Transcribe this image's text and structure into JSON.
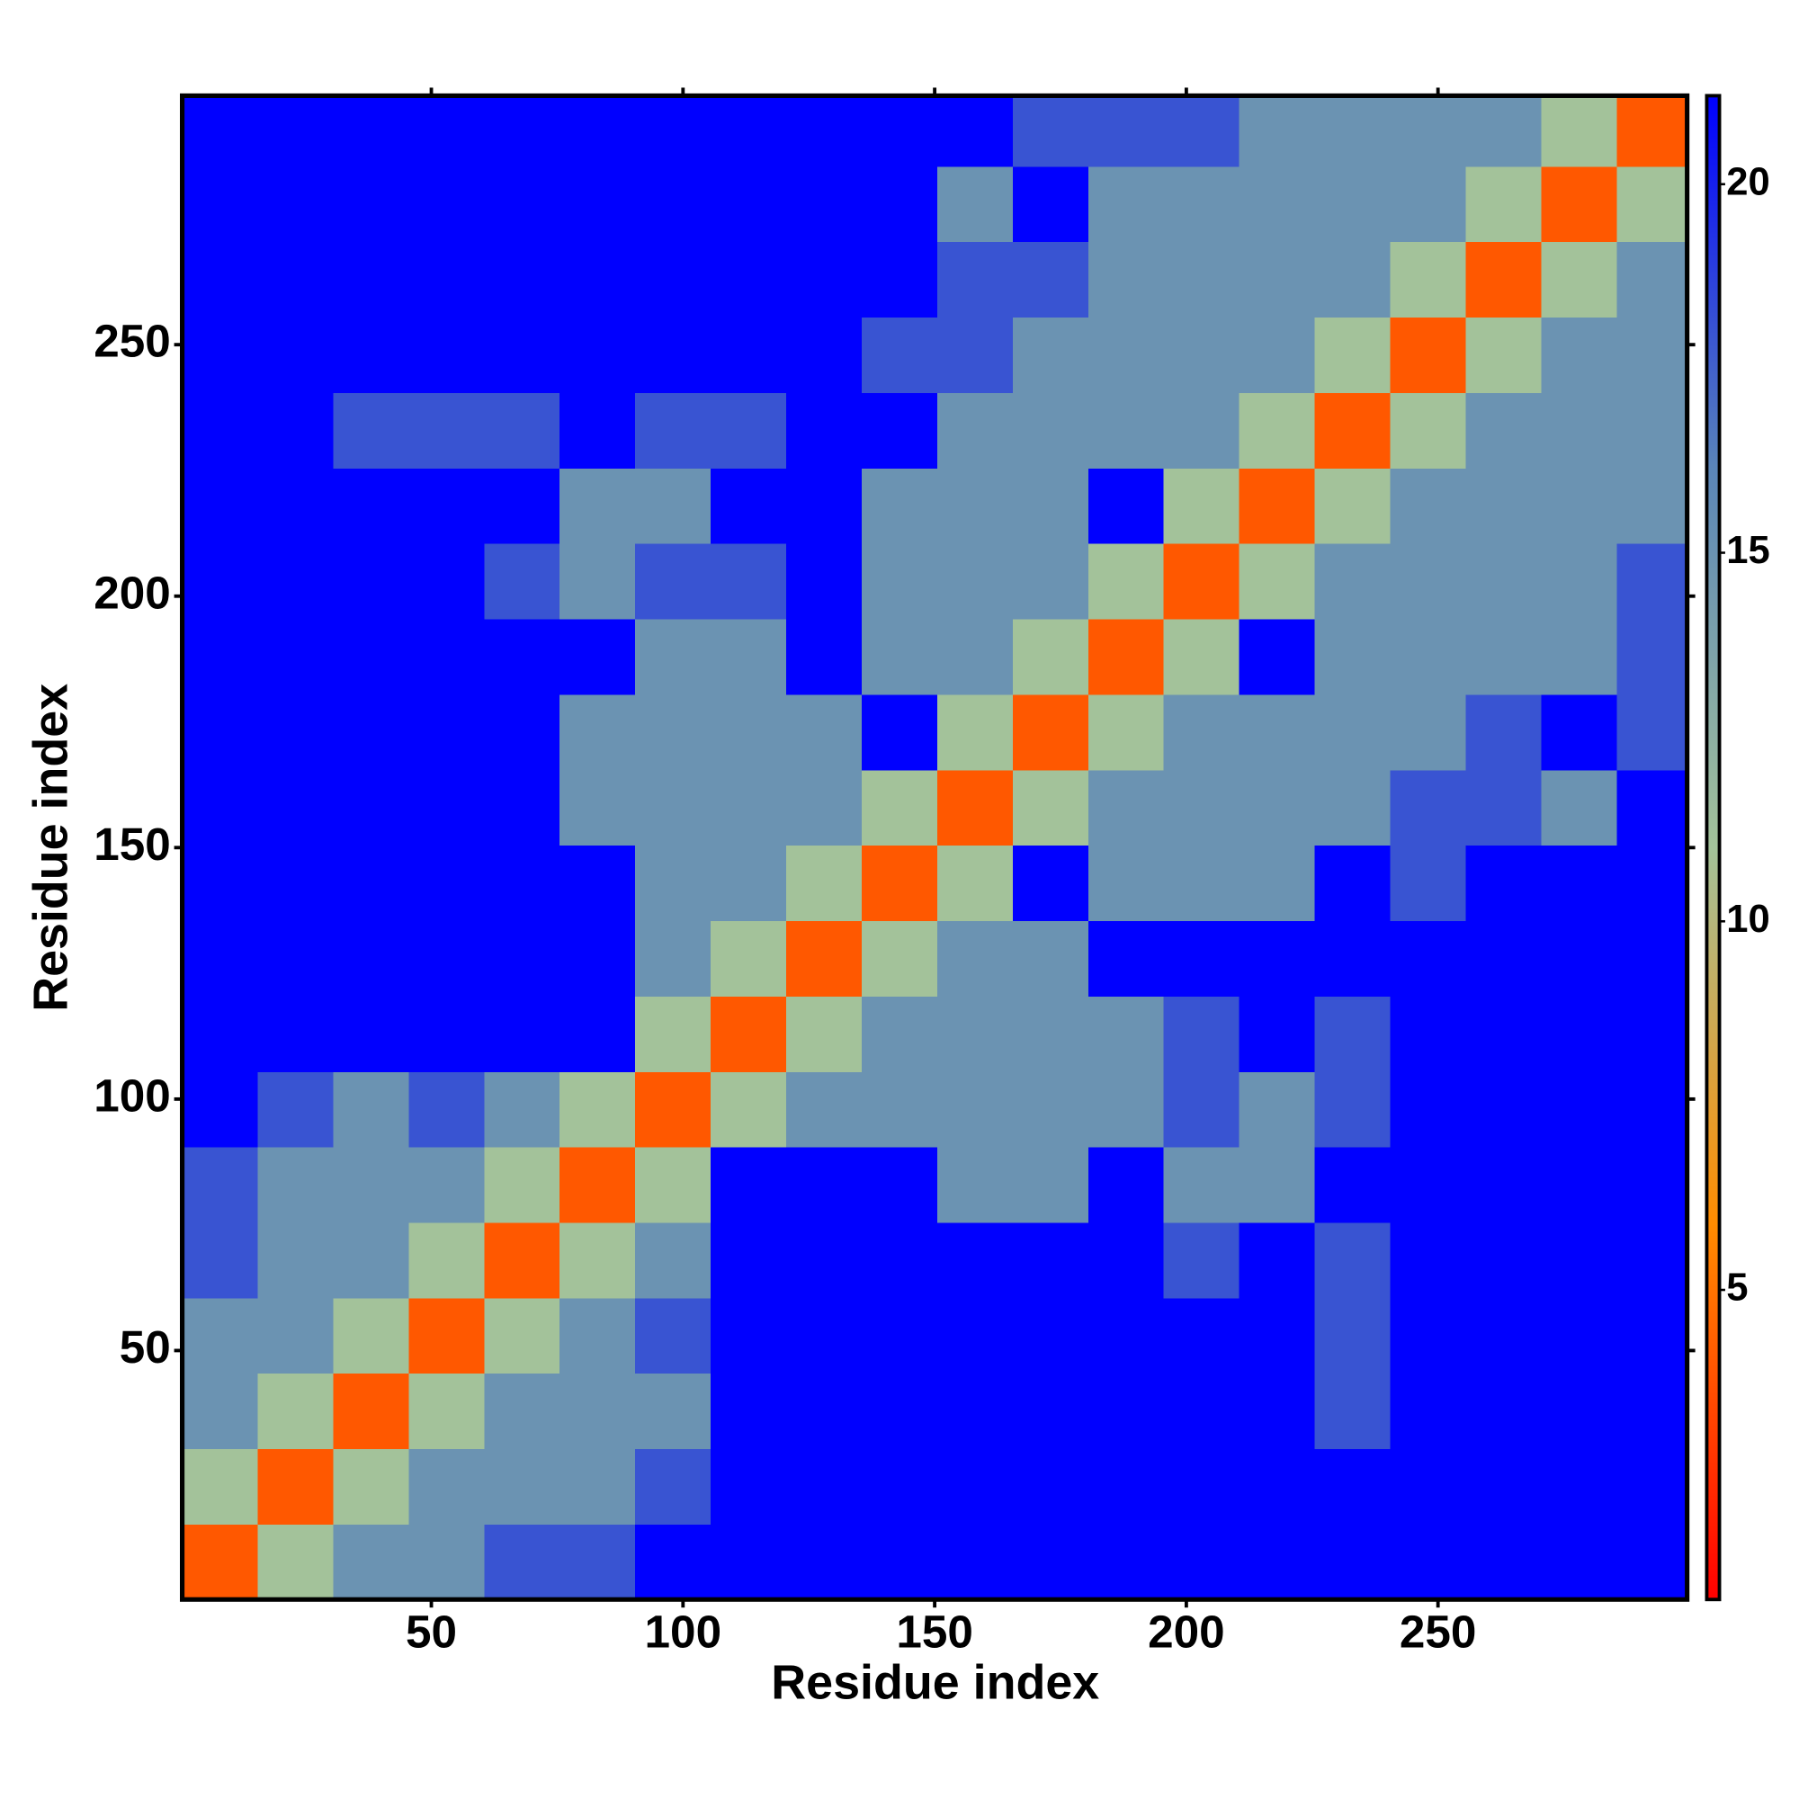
{
  "chart_data": {
    "type": "heatmap",
    "x_label": "Residue index",
    "y_label": "Residue index",
    "bins": [
      0.5,
      15.5,
      30.5,
      45.5,
      60.5,
      75.5,
      90.5,
      105.5,
      120.5,
      135.5,
      150.5,
      165.5,
      180.5,
      195.5,
      210.5,
      225.5,
      240.5,
      255.5,
      270.5,
      285.5,
      299.5
    ],
    "values": [
      [
        4,
        11,
        15,
        15,
        18,
        18,
        23,
        23,
        23,
        23,
        23,
        23,
        23,
        23,
        23,
        23,
        23,
        23,
        23,
        23
      ],
      [
        11,
        4,
        11,
        15,
        15,
        15,
        18,
        23,
        23,
        23,
        23,
        23,
        23,
        23,
        23,
        23,
        23,
        23,
        23,
        23
      ],
      [
        15,
        11,
        4,
        11,
        15,
        15,
        15,
        23,
        23,
        23,
        23,
        23,
        23,
        23,
        23,
        18,
        23,
        23,
        23,
        23
      ],
      [
        15,
        15,
        11,
        4,
        11,
        15,
        18,
        23,
        23,
        23,
        23,
        23,
        23,
        23,
        23,
        18,
        23,
        23,
        23,
        23
      ],
      [
        18,
        15,
        15,
        11,
        4,
        11,
        15,
        23,
        23,
        23,
        23,
        23,
        23,
        18,
        23,
        18,
        23,
        23,
        23,
        23
      ],
      [
        18,
        15,
        15,
        15,
        11,
        4,
        11,
        23,
        23,
        23,
        15,
        15,
        23,
        15,
        15,
        23,
        23,
        23,
        23,
        23
      ],
      [
        23,
        18,
        15,
        18,
        15,
        11,
        4,
        11,
        15,
        15,
        15,
        15,
        15,
        18,
        15,
        18,
        23,
        23,
        23,
        23
      ],
      [
        23,
        23,
        23,
        23,
        23,
        23,
        11,
        4,
        11,
        15,
        15,
        15,
        15,
        18,
        23,
        18,
        23,
        23,
        23,
        23
      ],
      [
        23,
        23,
        23,
        23,
        23,
        23,
        15,
        11,
        4,
        11,
        15,
        15,
        23,
        23,
        23,
        23,
        23,
        23,
        23,
        23
      ],
      [
        23,
        23,
        23,
        23,
        23,
        23,
        15,
        15,
        11,
        4,
        11,
        23,
        15,
        15,
        15,
        23,
        18,
        23,
        23,
        23
      ],
      [
        23,
        23,
        23,
        23,
        23,
        15,
        15,
        15,
        15,
        11,
        4,
        11,
        15,
        15,
        15,
        15,
        18,
        18,
        15,
        23
      ],
      [
        23,
        23,
        23,
        23,
        23,
        15,
        15,
        15,
        15,
        23,
        11,
        4,
        11,
        15,
        15,
        15,
        15,
        18,
        23,
        18
      ],
      [
        23,
        23,
        23,
        23,
        23,
        23,
        15,
        15,
        23,
        15,
        15,
        11,
        4,
        11,
        23,
        15,
        15,
        15,
        15,
        18
      ],
      [
        23,
        23,
        23,
        23,
        18,
        15,
        18,
        18,
        23,
        15,
        15,
        15,
        11,
        4,
        11,
        15,
        15,
        15,
        15,
        18
      ],
      [
        23,
        23,
        23,
        23,
        23,
        15,
        15,
        23,
        23,
        15,
        15,
        15,
        23,
        11,
        4,
        11,
        15,
        15,
        15,
        15
      ],
      [
        23,
        23,
        18,
        18,
        18,
        23,
        18,
        18,
        23,
        23,
        15,
        15,
        15,
        15,
        11,
        4,
        11,
        15,
        15,
        15
      ],
      [
        23,
        23,
        23,
        23,
        23,
        23,
        23,
        23,
        23,
        18,
        18,
        15,
        15,
        15,
        15,
        11,
        4,
        11,
        15,
        15
      ],
      [
        23,
        23,
        23,
        23,
        23,
        23,
        23,
        23,
        23,
        23,
        18,
        18,
        15,
        15,
        15,
        15,
        11,
        4,
        11,
        15
      ],
      [
        23,
        23,
        23,
        23,
        23,
        23,
        23,
        23,
        23,
        23,
        15,
        23,
        15,
        15,
        15,
        15,
        15,
        11,
        4,
        11
      ],
      [
        23,
        23,
        23,
        23,
        23,
        23,
        23,
        23,
        23,
        23,
        23,
        18,
        18,
        18,
        15,
        15,
        15,
        15,
        11,
        4
      ]
    ],
    "xlim": [
      0.5,
      299.5
    ],
    "ylim": [
      0.5,
      299.5
    ],
    "xticks": [
      50,
      100,
      150,
      200,
      250
    ],
    "yticks": [
      50,
      100,
      150,
      200,
      250
    ],
    "clim": [
      0.8,
      21.2
    ],
    "cticks": [
      5,
      10,
      15,
      20
    ],
    "colors": [
      "#ff0000",
      "#ff8c00",
      "#a3c29a",
      "#5b86b8",
      "#0000ff"
    ]
  }
}
